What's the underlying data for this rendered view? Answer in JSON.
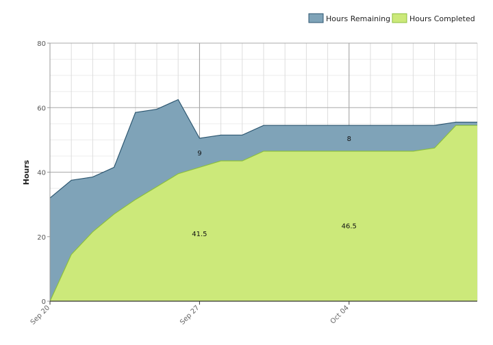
{
  "chart_data": {
    "type": "area",
    "stacked": true,
    "ylabel": "Hours",
    "xlabel": "",
    "ylim": [
      0,
      80
    ],
    "y_ticks": [
      0,
      20,
      40,
      60,
      80
    ],
    "grid": true,
    "legend_position": "top-right",
    "x_start": "Sep 20",
    "x_tick_labels": [
      {
        "day": 0,
        "label": "Sep 20"
      },
      {
        "day": 7,
        "label": "Sep 27"
      },
      {
        "day": 14,
        "label": "Oct 04"
      }
    ],
    "days": [
      0,
      1,
      2,
      3,
      4,
      5,
      6,
      7,
      8,
      9,
      10,
      11,
      12,
      13,
      14,
      15,
      16,
      17,
      18,
      19,
      20
    ],
    "series": [
      {
        "name": "Hours Completed",
        "color": "#cce97a",
        "line_color": "#8cbf3f",
        "values": [
          0,
          14.5,
          21.5,
          27,
          31.5,
          35.5,
          39.5,
          41.5,
          43.5,
          43.5,
          46.5,
          46.5,
          46.5,
          46.5,
          46.5,
          46.5,
          46.5,
          46.5,
          47.5,
          54.5,
          54.5
        ]
      },
      {
        "name": "Hours Remaining",
        "color": "#7fa3b8",
        "line_color": "#2c5670",
        "values": [
          32,
          23,
          17,
          14.5,
          27,
          24,
          23,
          9,
          8,
          8,
          8,
          8,
          8,
          8,
          8,
          8,
          8,
          8,
          7,
          1,
          1
        ]
      }
    ],
    "data_labels": [
      {
        "text": "9",
        "day": 7,
        "y": 46
      },
      {
        "text": "8",
        "day": 14,
        "y": 50.5
      },
      {
        "text": "41.5",
        "day": 7,
        "y": 21
      },
      {
        "text": "46.5",
        "day": 14,
        "y": 23.5
      }
    ]
  }
}
